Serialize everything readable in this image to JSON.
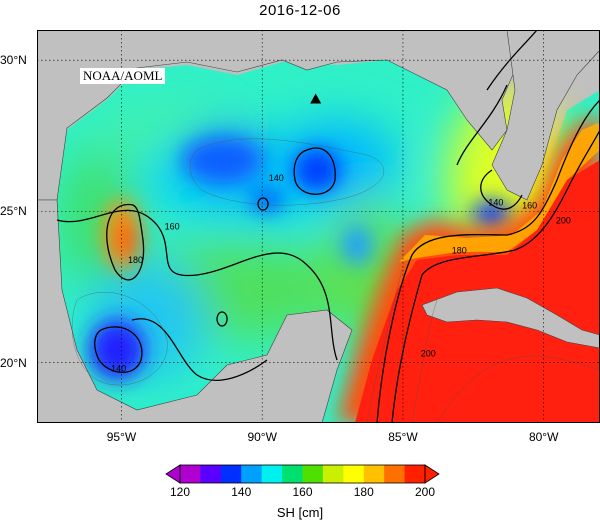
{
  "title": "2016-12-06",
  "credit": "NOAA/AOML",
  "x_axis": {
    "ticks": [
      {
        "label": "95°W",
        "lon": -95
      },
      {
        "label": "90°W",
        "lon": -90
      },
      {
        "label": "85°W",
        "lon": -85
      },
      {
        "label": "80°W",
        "lon": -80
      }
    ],
    "range": [
      -98,
      -78
    ]
  },
  "y_axis": {
    "ticks": [
      {
        "label": "30°N",
        "lat": 30
      },
      {
        "label": "25°N",
        "lat": 25
      },
      {
        "label": "20°N",
        "lat": 20
      }
    ],
    "range": [
      18,
      31
    ]
  },
  "contour_labels": [
    {
      "text": "140",
      "lon": -89.5,
      "lat": 26.0
    },
    {
      "text": "140",
      "lon": -95.1,
      "lat": 19.7
    },
    {
      "text": "140",
      "lon": -81.7,
      "lat": 25.2
    },
    {
      "text": "160",
      "lon": -93.2,
      "lat": 24.4
    },
    {
      "text": "160",
      "lon": -80.5,
      "lat": 25.1
    },
    {
      "text": "180",
      "lon": -94.5,
      "lat": 23.3
    },
    {
      "text": "180",
      "lon": -83.0,
      "lat": 23.6
    },
    {
      "text": "200",
      "lon": -84.1,
      "lat": 20.2
    },
    {
      "text": "200",
      "lon": -79.3,
      "lat": 24.6
    }
  ],
  "marker": {
    "shape": "triangle",
    "lon": -88.1,
    "lat": 28.7,
    "color": "#000000"
  },
  "colorbar": {
    "title": "SH [cm]",
    "min": 120,
    "max": 200,
    "tick_labels": [
      "120",
      "140",
      "160",
      "180",
      "200"
    ],
    "colors": [
      "#b000d0",
      "#5a00ff",
      "#0030ff",
      "#00a0ff",
      "#00f0f0",
      "#00e070",
      "#50e000",
      "#c8f000",
      "#ffff00",
      "#ffc000",
      "#ff7000",
      "#ff2000"
    ],
    "extend": "both"
  },
  "colors": {
    "land": "#c0c0c0",
    "grid": "#000000"
  }
}
